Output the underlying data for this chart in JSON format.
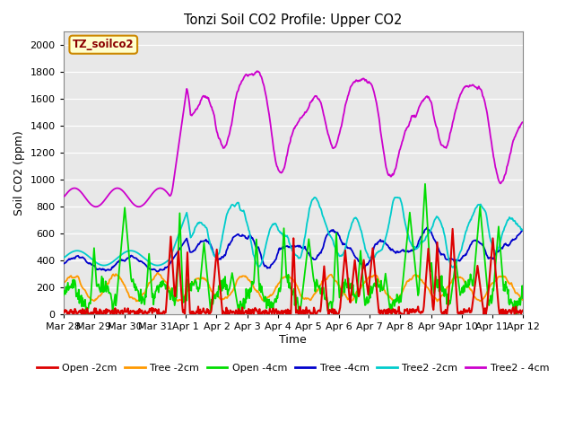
{
  "title": "Tonzi Soil CO2 Profile: Upper CO2",
  "ylabel": "Soil CO2 (ppm)",
  "xlabel": "Time",
  "subtitle_box": "TZ_soilco2",
  "ylim": [
    0,
    2100
  ],
  "fig_bg_color": "#ffffff",
  "plot_bg_color": "#e8e8e8",
  "grid_color": "white",
  "series_colors": {
    "Open -2cm": "#dd0000",
    "Tree -2cm": "#ff9900",
    "Open -4cm": "#00dd00",
    "Tree -4cm": "#0000cc",
    "Tree2 -2cm": "#00cccc",
    "Tree2 - 4cm": "#cc00cc"
  },
  "xtick_labels": [
    "Mar 28",
    "Mar 29",
    "Mar 30",
    "Mar 31",
    "Apr 1",
    "Apr 2",
    "Apr 3",
    "Apr 4",
    "Apr 5",
    "Apr 6",
    "Apr 7",
    "Apr 8",
    "Apr 9",
    "Apr 10",
    "Apr 11",
    "Apr 12"
  ],
  "legend_labels": [
    "Open -2cm",
    "Tree -2cm",
    "Open -4cm",
    "Tree -4cm",
    "Tree2 -2cm",
    "Tree2 - 4cm"
  ]
}
